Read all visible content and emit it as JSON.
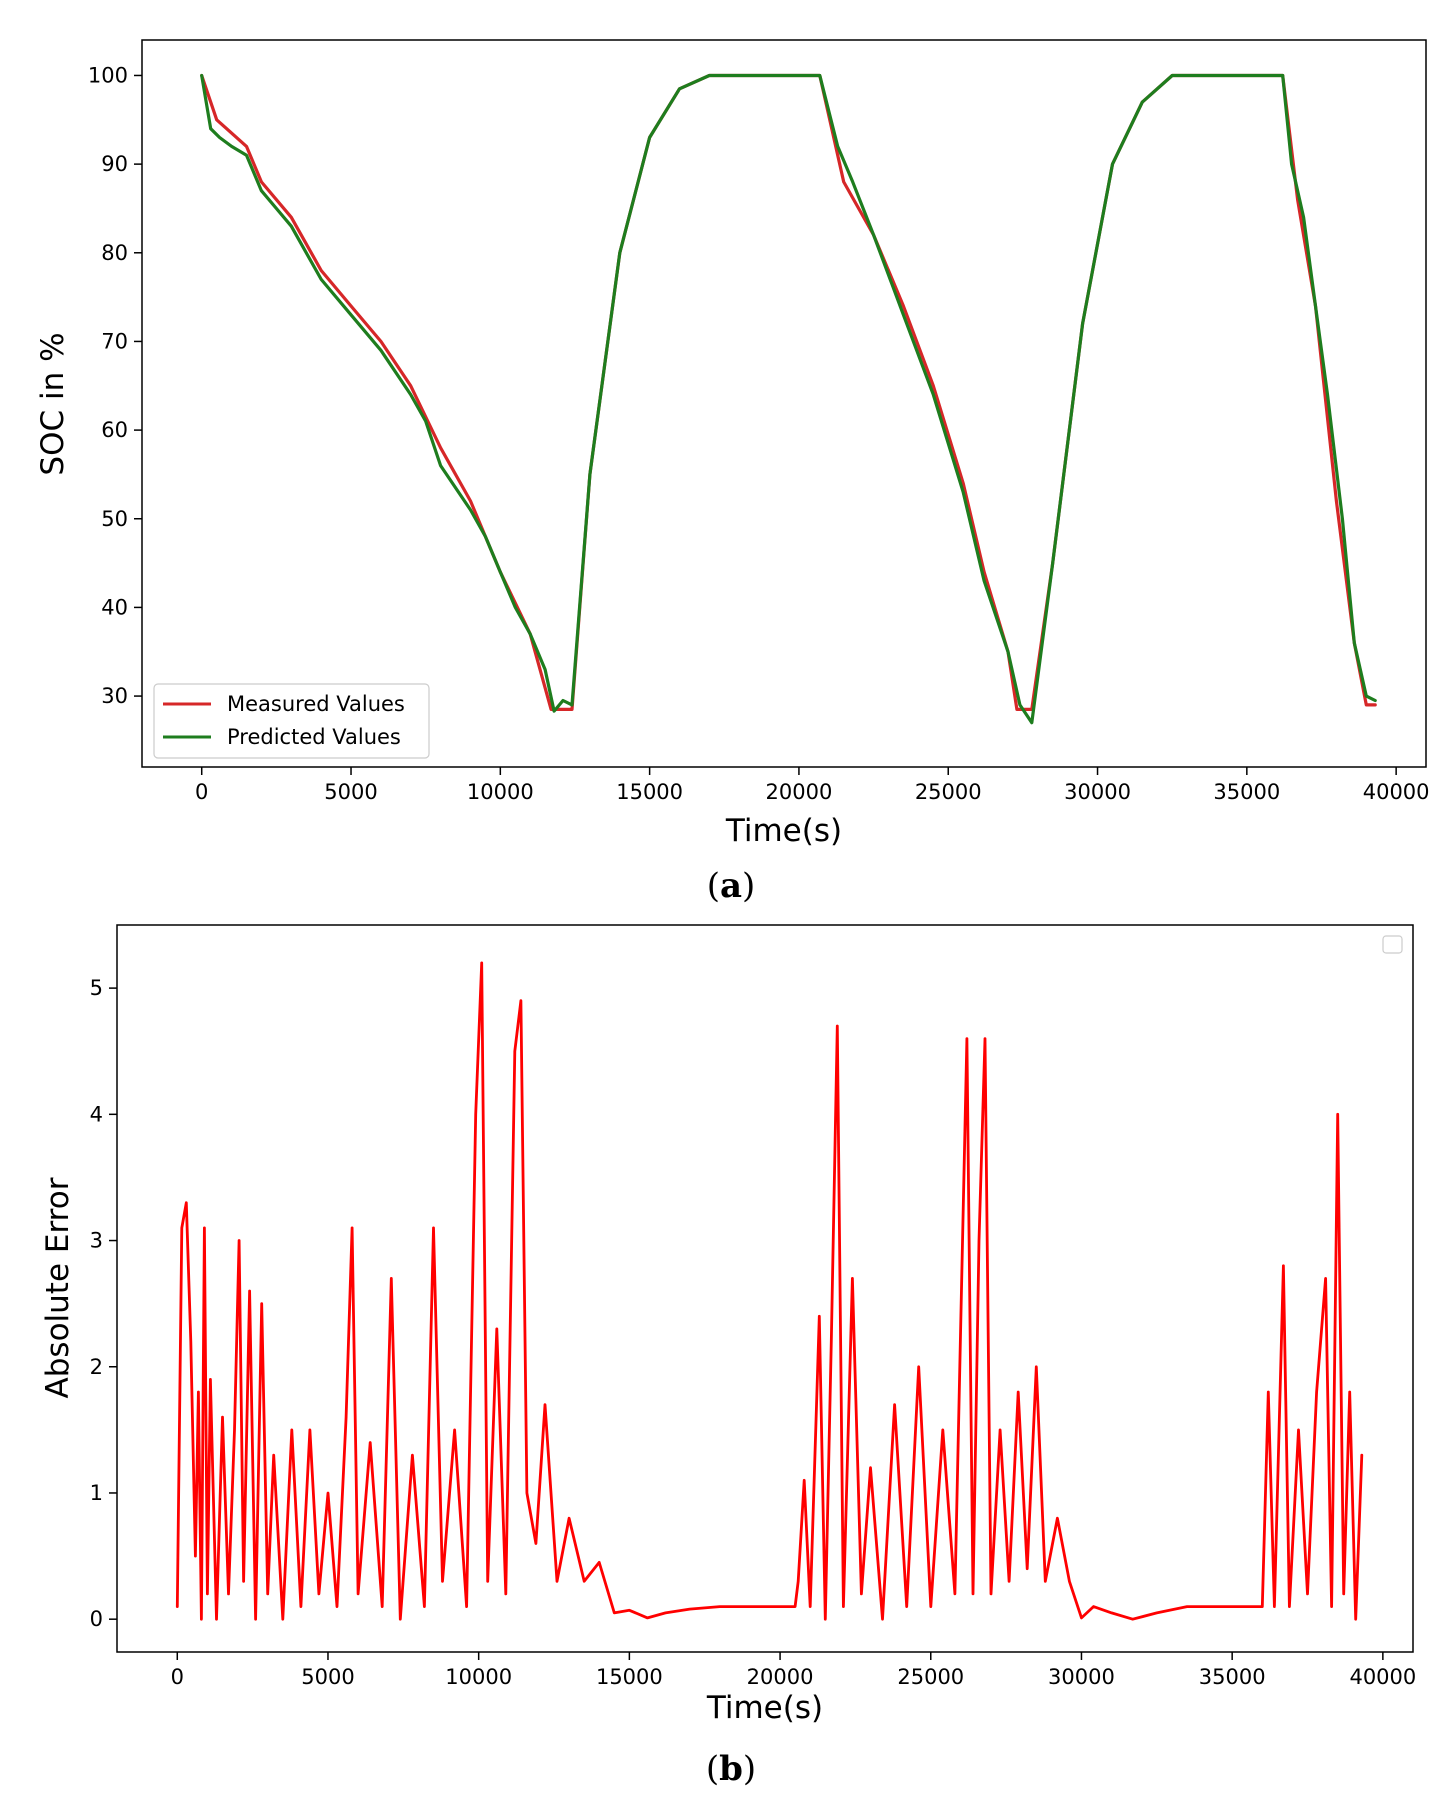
{
  "chart_data": [
    {
      "panel": "a",
      "caption_letter": "a",
      "type": "line",
      "xlabel": "Time(s)",
      "ylabel": "SOC in %",
      "xlim": [
        -2000,
        41000
      ],
      "ylim": [
        22,
        104
      ],
      "xticks": [
        0,
        5000,
        10000,
        15000,
        20000,
        25000,
        30000,
        35000,
        40000
      ],
      "yticks": [
        30,
        40,
        50,
        60,
        70,
        80,
        90,
        100
      ],
      "grid": false,
      "legend": "lower-left",
      "series": [
        {
          "name": "Measured Values",
          "color": "#d62728",
          "points": [
            [
              0,
              100
            ],
            [
              500,
              95
            ],
            [
              1500,
              92
            ],
            [
              2000,
              88
            ],
            [
              3000,
              84
            ],
            [
              4000,
              78
            ],
            [
              5000,
              74
            ],
            [
              6000,
              70
            ],
            [
              7000,
              65
            ],
            [
              8000,
              58
            ],
            [
              9000,
              52
            ],
            [
              10000,
              44
            ],
            [
              11000,
              37
            ],
            [
              11700,
              28.5
            ],
            [
              12400,
              28.5
            ],
            [
              13000,
              55
            ],
            [
              14000,
              80
            ],
            [
              15000,
              93
            ],
            [
              16000,
              98.5
            ],
            [
              17000,
              100
            ],
            [
              20700,
              100
            ],
            [
              21500,
              88
            ],
            [
              22500,
              82
            ],
            [
              23500,
              74
            ],
            [
              24500,
              65
            ],
            [
              25500,
              54
            ],
            [
              26200,
              44
            ],
            [
              27000,
              35
            ],
            [
              27300,
              28.5
            ],
            [
              27800,
              28.5
            ],
            [
              28500,
              45
            ],
            [
              29500,
              72
            ],
            [
              30500,
              90
            ],
            [
              31500,
              97
            ],
            [
              32500,
              100
            ],
            [
              36200,
              100
            ],
            [
              36700,
              86
            ],
            [
              37300,
              74
            ],
            [
              38000,
              52
            ],
            [
              38600,
              36
            ],
            [
              39000,
              29
            ],
            [
              39300,
              29
            ]
          ]
        },
        {
          "name": "Predicted Values",
          "color": "#1e7d1e",
          "points": [
            [
              0,
              100
            ],
            [
              300,
              94
            ],
            [
              600,
              93
            ],
            [
              1000,
              92
            ],
            [
              1500,
              91
            ],
            [
              2000,
              87
            ],
            [
              2500,
              85
            ],
            [
              3000,
              83
            ],
            [
              4000,
              77
            ],
            [
              5000,
              73
            ],
            [
              6000,
              69
            ],
            [
              7000,
              64
            ],
            [
              7500,
              61
            ],
            [
              8000,
              56
            ],
            [
              9000,
              51
            ],
            [
              9500,
              48
            ],
            [
              10000,
              44
            ],
            [
              10500,
              40
            ],
            [
              11000,
              37
            ],
            [
              11500,
              33
            ],
            [
              11800,
              28.3
            ],
            [
              12100,
              29.5
            ],
            [
              12400,
              29
            ],
            [
              13000,
              55
            ],
            [
              14000,
              80
            ],
            [
              15000,
              93
            ],
            [
              16000,
              98.5
            ],
            [
              17000,
              100
            ],
            [
              20700,
              100
            ],
            [
              21300,
              92
            ],
            [
              21800,
              88
            ],
            [
              22500,
              82
            ],
            [
              23500,
              73
            ],
            [
              24500,
              64
            ],
            [
              25500,
              53
            ],
            [
              26200,
              43
            ],
            [
              27000,
              35
            ],
            [
              27400,
              29
            ],
            [
              27800,
              27
            ],
            [
              28500,
              45
            ],
            [
              29500,
              72
            ],
            [
              30500,
              90
            ],
            [
              31500,
              97
            ],
            [
              32500,
              100
            ],
            [
              36200,
              100
            ],
            [
              36500,
              90
            ],
            [
              36900,
              84
            ],
            [
              37300,
              74
            ],
            [
              37700,
              64
            ],
            [
              38200,
              50
            ],
            [
              38600,
              36
            ],
            [
              39000,
              30
            ],
            [
              39300,
              29.5
            ]
          ]
        }
      ]
    },
    {
      "panel": "b",
      "caption_letter": "b",
      "type": "line",
      "xlabel": "Time(s)",
      "ylabel": "Absolute Error",
      "xlim": [
        -2000,
        41000
      ],
      "ylim": [
        -0.26,
        5.5
      ],
      "xticks": [
        0,
        5000,
        10000,
        15000,
        20000,
        25000,
        30000,
        35000,
        40000
      ],
      "yticks": [
        0,
        1,
        2,
        3,
        4,
        5
      ],
      "grid": false,
      "legend": "upper-right",
      "series": [
        {
          "name": "",
          "color": "#ff0000",
          "points": [
            [
              0,
              0.1
            ],
            [
              150,
              3.1
            ],
            [
              300,
              3.3
            ],
            [
              450,
              2.2
            ],
            [
              600,
              0.5
            ],
            [
              700,
              1.8
            ],
            [
              800,
              0
            ],
            [
              900,
              3.1
            ],
            [
              1000,
              0.2
            ],
            [
              1100,
              1.9
            ],
            [
              1300,
              0
            ],
            [
              1500,
              1.6
            ],
            [
              1700,
              0.2
            ],
            [
              1900,
              1.5
            ],
            [
              2050,
              3.0
            ],
            [
              2200,
              0.3
            ],
            [
              2400,
              2.6
            ],
            [
              2600,
              0
            ],
            [
              2800,
              2.5
            ],
            [
              3000,
              0.2
            ],
            [
              3200,
              1.3
            ],
            [
              3500,
              0
            ],
            [
              3800,
              1.5
            ],
            [
              4100,
              0.1
            ],
            [
              4400,
              1.5
            ],
            [
              4700,
              0.2
            ],
            [
              5000,
              1.0
            ],
            [
              5300,
              0.1
            ],
            [
              5600,
              1.6
            ],
            [
              5800,
              3.1
            ],
            [
              6000,
              0.2
            ],
            [
              6400,
              1.4
            ],
            [
              6800,
              0.1
            ],
            [
              7100,
              2.7
            ],
            [
              7400,
              0
            ],
            [
              7800,
              1.3
            ],
            [
              8200,
              0.1
            ],
            [
              8500,
              3.1
            ],
            [
              8800,
              0.3
            ],
            [
              9200,
              1.5
            ],
            [
              9600,
              0.1
            ],
            [
              9900,
              4.0
            ],
            [
              10100,
              5.2
            ],
            [
              10300,
              0.3
            ],
            [
              10600,
              2.3
            ],
            [
              10900,
              0.2
            ],
            [
              11200,
              4.5
            ],
            [
              11400,
              4.9
            ],
            [
              11600,
              1.0
            ],
            [
              11900,
              0.6
            ],
            [
              12200,
              1.7
            ],
            [
              12600,
              0.3
            ],
            [
              13000,
              0.8
            ],
            [
              13500,
              0.3
            ],
            [
              14000,
              0.45
            ],
            [
              14500,
              0.05
            ],
            [
              15000,
              0.07
            ],
            [
              15600,
              0.01
            ],
            [
              16200,
              0.05
            ],
            [
              17000,
              0.08
            ],
            [
              18000,
              0.1
            ],
            [
              20500,
              0.1
            ],
            [
              20600,
              0.3
            ],
            [
              20800,
              1.1
            ],
            [
              21000,
              0.1
            ],
            [
              21300,
              2.4
            ],
            [
              21500,
              0
            ],
            [
              21700,
              2.2
            ],
            [
              21900,
              4.7
            ],
            [
              22100,
              0.1
            ],
            [
              22400,
              2.7
            ],
            [
              22700,
              0.2
            ],
            [
              23000,
              1.2
            ],
            [
              23400,
              0
            ],
            [
              23800,
              1.7
            ],
            [
              24200,
              0.1
            ],
            [
              24600,
              2.0
            ],
            [
              25000,
              0.1
            ],
            [
              25400,
              1.5
            ],
            [
              25800,
              0.2
            ],
            [
              26200,
              4.6
            ],
            [
              26400,
              0.2
            ],
            [
              26600,
              3.0
            ],
            [
              26800,
              4.6
            ],
            [
              27000,
              0.2
            ],
            [
              27300,
              1.5
            ],
            [
              27600,
              0.3
            ],
            [
              27900,
              1.8
            ],
            [
              28200,
              0.4
            ],
            [
              28500,
              2.0
            ],
            [
              28800,
              0.3
            ],
            [
              29200,
              0.8
            ],
            [
              29600,
              0.3
            ],
            [
              30000,
              0.01
            ],
            [
              30400,
              0.1
            ],
            [
              31000,
              0.05
            ],
            [
              31700,
              0
            ],
            [
              32500,
              0.05
            ],
            [
              33500,
              0.1
            ],
            [
              36000,
              0.1
            ],
            [
              36200,
              1.8
            ],
            [
              36400,
              0.1
            ],
            [
              36700,
              2.8
            ],
            [
              36900,
              0.1
            ],
            [
              37200,
              1.5
            ],
            [
              37500,
              0.2
            ],
            [
              37800,
              1.8
            ],
            [
              38100,
              2.7
            ],
            [
              38300,
              0.1
            ],
            [
              38500,
              4.0
            ],
            [
              38700,
              0.2
            ],
            [
              38900,
              1.8
            ],
            [
              39100,
              0
            ],
            [
              39300,
              1.3
            ]
          ]
        }
      ]
    }
  ]
}
